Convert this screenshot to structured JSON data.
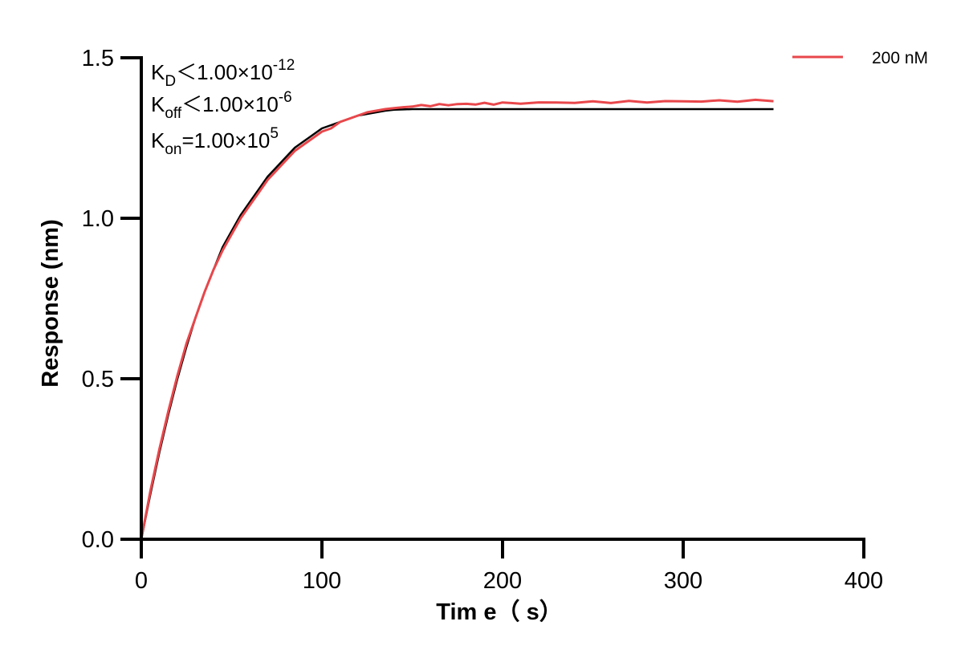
{
  "chart_data": {
    "type": "line",
    "title": "",
    "xlabel": "Tim e（ s）",
    "ylabel": "Response (nm)",
    "xlim": [
      0,
      400
    ],
    "ylim": [
      0,
      1.5
    ],
    "x_ticks": [
      "0",
      "100",
      "200",
      "300",
      "400"
    ],
    "y_ticks": [
      "0.0",
      "0.5",
      "1.0",
      "1.5"
    ],
    "grid": false,
    "legend_position": "top-right",
    "annotations": [
      {
        "main": "K",
        "sub": "D",
        "text": "＜1.00×10",
        "sup": "-12"
      },
      {
        "main": "K",
        "sub": "off",
        "text": "＜1.00×10",
        "sup": "-6"
      },
      {
        "main": "K",
        "sub": "on",
        "text": "=1.00×10",
        "sup": "5"
      }
    ],
    "series": [
      {
        "name": "200 nM",
        "color": "#e8474b",
        "kind": "measured",
        "x": [
          0,
          5,
          10,
          15,
          20,
          25,
          30,
          35,
          40,
          45,
          50,
          55,
          60,
          65,
          70,
          75,
          80,
          85,
          90,
          95,
          100,
          105,
          110,
          115,
          120,
          125,
          130,
          135,
          140,
          145,
          150,
          155,
          160,
          165,
          170,
          175,
          180,
          185,
          190,
          195,
          200,
          210,
          220,
          230,
          240,
          250,
          260,
          270,
          280,
          290,
          300,
          310,
          320,
          330,
          340,
          350
        ],
        "y": [
          0.0,
          0.15,
          0.28,
          0.4,
          0.51,
          0.61,
          0.69,
          0.77,
          0.84,
          0.9,
          0.95,
          1.0,
          1.04,
          1.08,
          1.12,
          1.15,
          1.18,
          1.21,
          1.23,
          1.25,
          1.27,
          1.28,
          1.3,
          1.31,
          1.32,
          1.33,
          1.335,
          1.34,
          1.343,
          1.346,
          1.348,
          1.35,
          1.352,
          1.353,
          1.354,
          1.355,
          1.356,
          1.356,
          1.357,
          1.357,
          1.358,
          1.359,
          1.36,
          1.36,
          1.361,
          1.362,
          1.362,
          1.363,
          1.363,
          1.364,
          1.364,
          1.365,
          1.365,
          1.366,
          1.366,
          1.367
        ]
      },
      {
        "name": "",
        "color": "#000000",
        "kind": "fit",
        "x": [
          0,
          5,
          10,
          15,
          20,
          25,
          30,
          35,
          40,
          45,
          50,
          55,
          60,
          65,
          70,
          75,
          80,
          85,
          90,
          95,
          100,
          105,
          110,
          115,
          120,
          125,
          130,
          135,
          140,
          145,
          150,
          160,
          200,
          250,
          300,
          350
        ],
        "y": [
          0.0,
          0.14,
          0.27,
          0.39,
          0.5,
          0.6,
          0.69,
          0.77,
          0.84,
          0.91,
          0.96,
          1.01,
          1.05,
          1.09,
          1.13,
          1.16,
          1.19,
          1.22,
          1.24,
          1.26,
          1.28,
          1.29,
          1.3,
          1.31,
          1.32,
          1.325,
          1.33,
          1.335,
          1.338,
          1.339,
          1.34,
          1.34,
          1.34,
          1.34,
          1.34,
          1.34
        ]
      }
    ]
  }
}
